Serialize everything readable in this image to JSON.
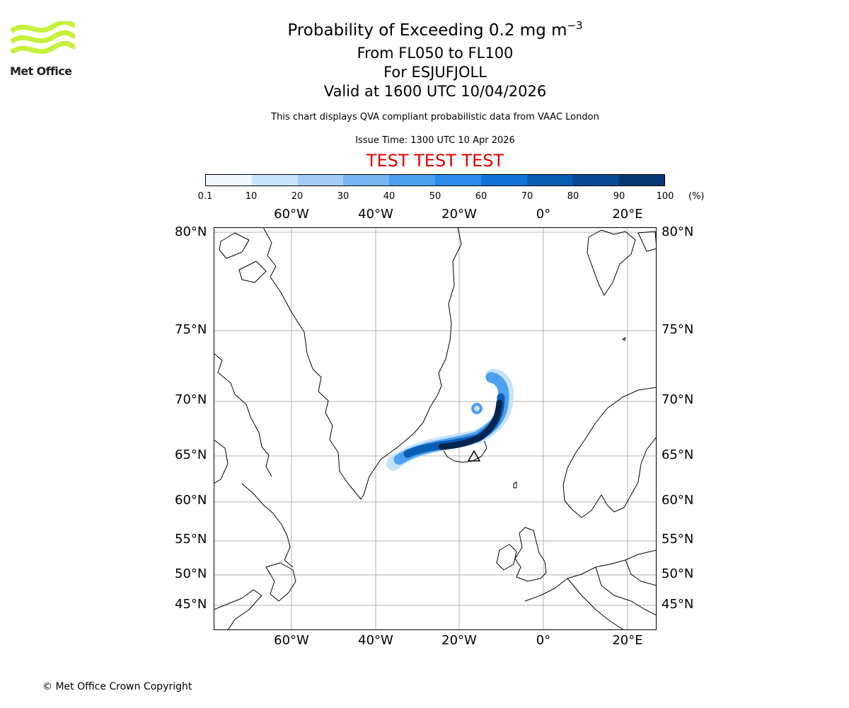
{
  "header": {
    "title_prefix": "Probability of Exceeding 0.2 mg m",
    "title_exponent": "−3",
    "level_range": "From FL050 to FL100",
    "volcano": "For ESJUFJOLL",
    "valid_time": "Valid at 1600 UTC 10/04/2026",
    "disclaimer": "This chart displays QVA compliant probabilistic data from VAAC London",
    "issue_time": "Issue Time: 1300 UTC 10 Apr 2026",
    "test_banner": "TEST TEST TEST"
  },
  "logo": {
    "text": "Met Office",
    "color": "#c6f03c"
  },
  "colorbar": {
    "ticks": [
      "0.1",
      "10",
      "20",
      "30",
      "40",
      "50",
      "60",
      "70",
      "80",
      "90",
      "100"
    ],
    "unit": "(%)",
    "colors": [
      "#eef6ff",
      "#c7e2fb",
      "#a3cdf7",
      "#77b6f3",
      "#4da0ef",
      "#2a8bea",
      "#0f73d6",
      "#0a5db5",
      "#084a94",
      "#053873",
      "#042550"
    ]
  },
  "map": {
    "lon_labels": [
      "60°W",
      "40°W",
      "20°W",
      "0°",
      "20°E"
    ],
    "lat_labels": [
      "80°N",
      "75°N",
      "70°N",
      "65°N",
      "60°N",
      "55°N",
      "50°N",
      "45°N"
    ],
    "grid_color": "#b0b0b0",
    "plume_colors": {
      "low": "#c7e2fb",
      "mid": "#4da0ef",
      "high": "#0a5db5",
      "core": "#042550"
    }
  },
  "footer": {
    "copyright": "© Met Office Crown Copyright"
  }
}
